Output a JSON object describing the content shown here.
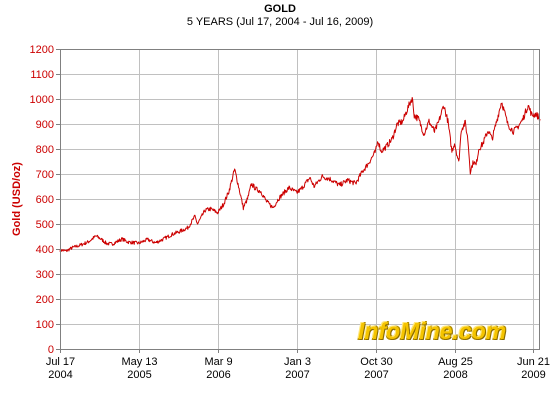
{
  "chart_data": {
    "type": "line",
    "title": "GOLD",
    "subtitle": "5 YEARS (Jul 17, 2004 - Jul 16, 2009)",
    "ylabel": "Gold (USD/oz)",
    "xlabel": "",
    "ylim": [
      0,
      1200
    ],
    "yticks": [
      0,
      100,
      200,
      300,
      400,
      500,
      600,
      700,
      800,
      900,
      1000,
      1100,
      1200
    ],
    "xlim": [
      "2004-07-17",
      "2009-07-16"
    ],
    "xticks": [
      {
        "date": "2004-07-17",
        "line1": "Jul 17",
        "line2": "2004"
      },
      {
        "date": "2005-05-13",
        "line1": "May 13",
        "line2": "2005"
      },
      {
        "date": "2006-03-09",
        "line1": "Mar 9",
        "line2": "2006"
      },
      {
        "date": "2007-01-03",
        "line1": "Jan 3",
        "line2": "2007"
      },
      {
        "date": "2007-10-30",
        "line1": "Oct 30",
        "line2": "2007"
      },
      {
        "date": "2008-08-25",
        "line1": "Aug 25",
        "line2": "2008"
      },
      {
        "date": "2009-06-21",
        "line1": "Jun 21",
        "line2": "2009"
      }
    ],
    "grid": true,
    "series": [
      {
        "color": "#cc0000",
        "points": [
          [
            "2004-07-17",
            396
          ],
          [
            "2004-08-10",
            392
          ],
          [
            "2004-09-01",
            405
          ],
          [
            "2004-10-01",
            415
          ],
          [
            "2004-11-01",
            428
          ],
          [
            "2004-12-01",
            452
          ],
          [
            "2004-12-20",
            440
          ],
          [
            "2005-01-10",
            422
          ],
          [
            "2005-02-01",
            420
          ],
          [
            "2005-03-10",
            440
          ],
          [
            "2005-04-01",
            428
          ],
          [
            "2005-05-13",
            423
          ],
          [
            "2005-06-15",
            438
          ],
          [
            "2005-07-15",
            425
          ],
          [
            "2005-08-15",
            440
          ],
          [
            "2005-09-15",
            458
          ],
          [
            "2005-10-15",
            470
          ],
          [
            "2005-11-15",
            485
          ],
          [
            "2005-12-12",
            530
          ],
          [
            "2005-12-22",
            500
          ],
          [
            "2006-01-20",
            555
          ],
          [
            "2006-02-10",
            560
          ],
          [
            "2006-03-09",
            545
          ],
          [
            "2006-03-31",
            580
          ],
          [
            "2006-04-20",
            630
          ],
          [
            "2006-05-12",
            718
          ],
          [
            "2006-05-25",
            660
          ],
          [
            "2006-06-14",
            565
          ],
          [
            "2006-06-30",
            600
          ],
          [
            "2006-07-15",
            660
          ],
          [
            "2006-08-01",
            640
          ],
          [
            "2006-08-20",
            630
          ],
          [
            "2006-09-10",
            590
          ],
          [
            "2006-10-05",
            565
          ],
          [
            "2006-10-25",
            600
          ],
          [
            "2006-11-20",
            630
          ],
          [
            "2006-12-05",
            645
          ],
          [
            "2007-01-03",
            625
          ],
          [
            "2007-01-20",
            640
          ],
          [
            "2007-02-22",
            685
          ],
          [
            "2007-03-10",
            650
          ],
          [
            "2007-04-10",
            690
          ],
          [
            "2007-05-10",
            680
          ],
          [
            "2007-06-15",
            655
          ],
          [
            "2007-07-15",
            675
          ],
          [
            "2007-08-15",
            662
          ],
          [
            "2007-09-10",
            710
          ],
          [
            "2007-10-01",
            740
          ],
          [
            "2007-10-30",
            790
          ],
          [
            "2007-11-08",
            835
          ],
          [
            "2007-11-20",
            790
          ],
          [
            "2007-12-10",
            810
          ],
          [
            "2008-01-01",
            840
          ],
          [
            "2008-01-20",
            900
          ],
          [
            "2008-02-10",
            910
          ],
          [
            "2008-02-28",
            960
          ],
          [
            "2008-03-17",
            1005
          ],
          [
            "2008-03-25",
            935
          ],
          [
            "2008-04-10",
            920
          ],
          [
            "2008-05-01",
            860
          ],
          [
            "2008-05-20",
            910
          ],
          [
            "2008-06-10",
            870
          ],
          [
            "2008-06-25",
            905
          ],
          [
            "2008-07-15",
            975
          ],
          [
            "2008-07-31",
            910
          ],
          [
            "2008-08-15",
            790
          ],
          [
            "2008-08-25",
            825
          ],
          [
            "2008-09-10",
            745
          ],
          [
            "2008-09-20",
            880
          ],
          [
            "2008-10-05",
            905
          ],
          [
            "2008-10-15",
            835
          ],
          [
            "2008-10-24",
            710
          ],
          [
            "2008-11-05",
            750
          ],
          [
            "2008-11-15",
            735
          ],
          [
            "2008-11-25",
            800
          ],
          [
            "2008-12-10",
            820
          ],
          [
            "2008-12-31",
            875
          ],
          [
            "2009-01-15",
            840
          ],
          [
            "2009-02-01",
            910
          ],
          [
            "2009-02-20",
            990
          ],
          [
            "2009-03-05",
            940
          ],
          [
            "2009-03-15",
            900
          ],
          [
            "2009-04-06",
            870
          ],
          [
            "2009-04-20",
            885
          ],
          [
            "2009-05-10",
            915
          ],
          [
            "2009-06-01",
            975
          ],
          [
            "2009-06-15",
            935
          ],
          [
            "2009-07-01",
            940
          ],
          [
            "2009-07-16",
            920
          ]
        ]
      }
    ]
  },
  "watermark": "InfoMine.com",
  "colors": {
    "line": "#cc0000",
    "axis_text": "#cc0000",
    "grid": "#c0c0c0",
    "frame": "#808080",
    "watermark": "#f5c400"
  }
}
